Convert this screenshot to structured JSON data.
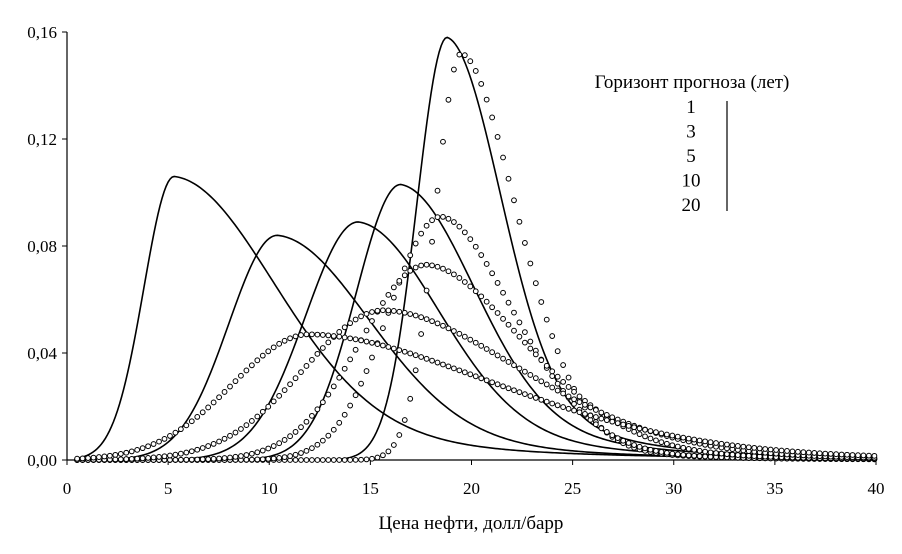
{
  "chart_data": {
    "type": "line",
    "xlabel": "Цена нефти, долл/барр",
    "ylabel": "",
    "xlim": [
      0,
      40
    ],
    "ylim": [
      0,
      0.16
    ],
    "x_ticks": [
      0,
      5,
      10,
      15,
      20,
      25,
      30,
      35,
      40
    ],
    "x_tick_labels": [
      "0",
      "5",
      "10",
      "15",
      "20",
      "25",
      "30",
      "35",
      "40"
    ],
    "y_ticks": [
      0,
      0.04,
      0.08,
      0.12,
      0.16
    ],
    "y_tick_labels": [
      "0,00",
      "0,04",
      "0,08",
      "0,12",
      "0,16"
    ],
    "grid": false,
    "legend": {
      "title": "Горизонт прогноза (лет)",
      "entries": [
        "1",
        "3",
        "5",
        "10",
        "20"
      ],
      "placement": "top-right"
    },
    "series": [
      {
        "group": "solid",
        "peak_x": 5.3,
        "peak_y": 0.106,
        "spread_left": 1.5,
        "spread_right": 5.0,
        "tail": 1.8
      },
      {
        "group": "solid",
        "peak_x": 10.4,
        "peak_y": 0.084,
        "spread_left": 2.4,
        "spread_right": 4.6,
        "tail": 1.8
      },
      {
        "group": "solid",
        "peak_x": 14.4,
        "peak_y": 0.089,
        "spread_left": 2.6,
        "spread_right": 4.0,
        "tail": 2.0
      },
      {
        "group": "solid",
        "peak_x": 16.5,
        "peak_y": 0.103,
        "spread_left": 2.2,
        "spread_right": 3.6,
        "tail": 2.2
      },
      {
        "group": "solid",
        "peak_x": 18.8,
        "peak_y": 0.158,
        "spread_left": 1.5,
        "spread_right": 2.6,
        "tail": 2.4
      },
      {
        "group": "dotted",
        "peak_x": 19.5,
        "peak_y": 0.152,
        "spread_left": 1.3,
        "spread_right": 3.0,
        "tail": 1.0
      },
      {
        "group": "dotted",
        "peak_x": 18.5,
        "peak_y": 0.091,
        "spread_left": 2.6,
        "spread_right": 3.9,
        "tail": 1.0
      },
      {
        "group": "dotted",
        "peak_x": 17.8,
        "peak_y": 0.073,
        "spread_left": 3.3,
        "spread_right": 5.2,
        "tail": 1.0
      },
      {
        "group": "dotted",
        "peak_x": 15.7,
        "peak_y": 0.056,
        "spread_left": 4.0,
        "spread_right": 7.3,
        "tail": 1.0
      },
      {
        "group": "dotted",
        "peak_x": 12.0,
        "peak_y": 0.047,
        "spread_left": 3.8,
        "spread_right": 10.0,
        "tail": 1.0
      }
    ]
  }
}
